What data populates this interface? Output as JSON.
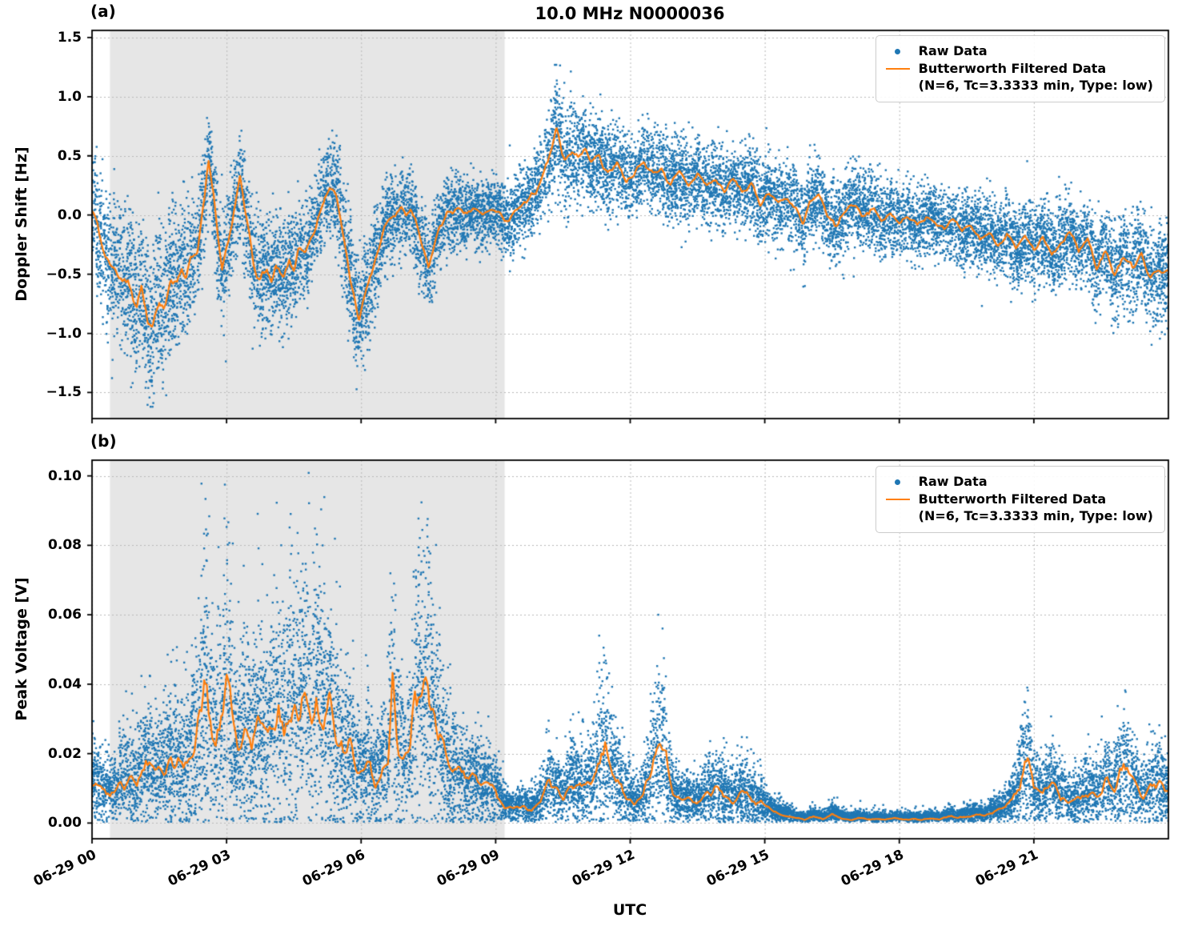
{
  "figure": {
    "title": "10.0 MHz N0000036",
    "xlabel": "UTC"
  },
  "style": {
    "raw_color": "#1f77b4",
    "filtered_color": "#ff7f0e",
    "shaded_color": "rgba(140,140,140,0.22)",
    "grid_color": "#b8b8b8",
    "spine_color": "#000000",
    "background": "#ffffff"
  },
  "legend": {
    "raw_label": "Raw Data",
    "filtered_label": "Butterworth Filtered Data",
    "filtered_sublabel": "(N=6, Tc=3.3333 min, Type: low)"
  },
  "x_axis": {
    "label": "UTC",
    "range_hours": [
      0,
      24
    ],
    "ticks_hours": [
      0,
      3,
      6,
      9,
      12,
      15,
      18,
      21
    ],
    "tick_labels": [
      "06-29 00",
      "06-29 03",
      "06-29 06",
      "06-29 09",
      "06-29 12",
      "06-29 15",
      "06-29 18",
      "06-29 21"
    ]
  },
  "shaded_region_hours": [
    0.4,
    9.2
  ],
  "chart_data": [
    {
      "panel": "(a)",
      "type": "scatter",
      "ylabel": "Doppler Shift [Hz]",
      "y_unit": "Hz",
      "x_unit": "hours since 06-29 00:00 UTC",
      "ylim": [
        -1.72,
        1.56
      ],
      "ytick_values": [
        1.5,
        1.0,
        0.5,
        0.0,
        -0.5,
        -1.0,
        -1.5
      ],
      "ytick_labels": [
        "1.5",
        "1.0",
        "0.5",
        "0.0",
        "−0.5",
        "−1.0",
        "−1.5"
      ],
      "grid": true,
      "legend_position": "upper right",
      "series": [
        {
          "name": "Raw Data",
          "type": "scatter",
          "color": "#1f77b4",
          "n_points_approx": 17000,
          "model": "raw = filtered + noise; time-varying half-width given in noise_halfwidth_hz; extremes about -1.55 Hz near 01:20 and +1.42 Hz near 10:20"
        },
        {
          "name": "Butterworth Filtered Data (N=6, Tc=3.3333 min, Type: low)",
          "type": "line",
          "color": "#ff7f0e",
          "x": [
            0,
            0.15,
            0.3,
            0.5,
            0.7,
            0.85,
            1.0,
            1.1,
            1.25,
            1.35,
            1.5,
            1.6,
            1.75,
            1.9,
            2.0,
            2.1,
            2.2,
            2.35,
            2.5,
            2.6,
            2.7,
            2.8,
            2.9,
            3.0,
            3.1,
            3.2,
            3.3,
            3.4,
            3.5,
            3.6,
            3.75,
            3.9,
            4.0,
            4.1,
            4.25,
            4.4,
            4.5,
            4.6,
            4.75,
            4.9,
            5.0,
            5.15,
            5.3,
            5.45,
            5.55,
            5.65,
            5.75,
            5.85,
            5.95,
            6.05,
            6.15,
            6.3,
            6.45,
            6.6,
            6.75,
            6.9,
            7.0,
            7.1,
            7.2,
            7.35,
            7.5,
            7.6,
            7.75,
            7.9,
            8.1,
            8.3,
            8.5,
            8.7,
            8.9,
            9.1,
            9.3,
            9.5,
            9.7,
            9.9,
            10.1,
            10.25,
            10.35,
            10.45,
            10.55,
            10.7,
            10.85,
            11.0,
            11.15,
            11.3,
            11.5,
            11.7,
            11.9,
            12.1,
            12.3,
            12.5,
            12.7,
            12.9,
            13.1,
            13.3,
            13.5,
            13.7,
            13.9,
            14.1,
            14.3,
            14.5,
            14.7,
            14.9,
            15.1,
            15.3,
            15.5,
            15.7,
            15.85,
            16.0,
            16.2,
            16.4,
            16.6,
            16.8,
            17.0,
            17.2,
            17.4,
            17.6,
            17.8,
            18.0,
            18.2,
            18.4,
            18.6,
            18.8,
            19.0,
            19.2,
            19.4,
            19.6,
            19.8,
            20.0,
            20.2,
            20.4,
            20.6,
            20.8,
            21.0,
            21.2,
            21.4,
            21.6,
            21.8,
            22.0,
            22.2,
            22.4,
            22.6,
            22.8,
            23.0,
            23.2,
            23.4,
            23.6,
            23.8,
            24.0
          ],
          "y": [
            0.1,
            -0.15,
            -0.35,
            -0.45,
            -0.55,
            -0.6,
            -0.75,
            -0.6,
            -0.95,
            -1.0,
            -0.7,
            -0.75,
            -0.55,
            -0.6,
            -0.45,
            -0.5,
            -0.35,
            -0.3,
            0.1,
            0.45,
            0.2,
            -0.2,
            -0.5,
            -0.3,
            -0.1,
            0.1,
            0.3,
            0.05,
            -0.15,
            -0.4,
            -0.55,
            -0.45,
            -0.6,
            -0.45,
            -0.55,
            -0.4,
            -0.45,
            -0.3,
            -0.35,
            -0.2,
            -0.1,
            0.1,
            0.25,
            0.2,
            0.0,
            -0.3,
            -0.5,
            -0.7,
            -0.9,
            -0.75,
            -0.6,
            -0.4,
            -0.2,
            -0.05,
            0.0,
            0.05,
            0.0,
            0.05,
            -0.05,
            -0.25,
            -0.45,
            -0.3,
            -0.1,
            0.0,
            0.05,
            0.0,
            0.05,
            0.0,
            0.05,
            0.0,
            -0.05,
            0.05,
            0.1,
            0.2,
            0.4,
            0.55,
            0.75,
            0.6,
            0.45,
            0.55,
            0.5,
            0.55,
            0.45,
            0.5,
            0.35,
            0.45,
            0.3,
            0.35,
            0.45,
            0.35,
            0.4,
            0.25,
            0.35,
            0.25,
            0.35,
            0.25,
            0.3,
            0.2,
            0.3,
            0.2,
            0.25,
            0.1,
            0.2,
            0.1,
            0.15,
            0.05,
            -0.1,
            0.1,
            0.15,
            0.0,
            -0.1,
            0.05,
            0.1,
            0.0,
            0.05,
            -0.05,
            0.0,
            -0.05,
            0.0,
            -0.1,
            0.0,
            -0.05,
            -0.1,
            -0.05,
            -0.15,
            -0.1,
            -0.2,
            -0.15,
            -0.25,
            -0.15,
            -0.3,
            -0.2,
            -0.3,
            -0.2,
            -0.35,
            -0.25,
            -0.15,
            -0.3,
            -0.2,
            -0.45,
            -0.3,
            -0.5,
            -0.35,
            -0.45,
            -0.3,
            -0.55,
            -0.45,
            -0.5
          ]
        }
      ],
      "noise_halfwidth_hz": {
        "x": [
          0,
          0.5,
          1,
          1.5,
          2,
          2.5,
          3,
          3.5,
          4,
          4.5,
          5,
          5.5,
          6,
          6.5,
          7,
          7.5,
          8,
          8.5,
          9,
          9.5,
          10,
          10.4,
          11,
          11.5,
          12,
          13,
          14,
          15,
          16,
          17,
          18,
          19,
          20,
          21,
          22,
          23,
          24
        ],
        "halfwidth": [
          0.45,
          0.5,
          0.55,
          0.6,
          0.5,
          0.4,
          0.38,
          0.4,
          0.42,
          0.4,
          0.35,
          0.4,
          0.45,
          0.35,
          0.3,
          0.3,
          0.28,
          0.25,
          0.25,
          0.28,
          0.3,
          0.42,
          0.35,
          0.32,
          0.3,
          0.3,
          0.3,
          0.3,
          0.3,
          0.3,
          0.26,
          0.26,
          0.26,
          0.3,
          0.3,
          0.34,
          0.36
        ]
      }
    },
    {
      "panel": "(b)",
      "type": "scatter",
      "ylabel": "Peak Voltage [V]",
      "y_unit": "V",
      "x_unit": "hours since 06-29 00:00 UTC",
      "ylim": [
        -0.0045,
        0.1045
      ],
      "ytick_values": [
        0.1,
        0.08,
        0.06,
        0.04,
        0.02,
        0.0
      ],
      "ytick_labels": [
        "0.10",
        "0.08",
        "0.06",
        "0.04",
        "0.02",
        "0.00"
      ],
      "grid": true,
      "legend_position": "upper right",
      "series": [
        {
          "name": "Raw Data",
          "type": "scatter",
          "color": "#1f77b4",
          "n_points_approx": 17000,
          "model": "raw ≈ filtered × (0.2–2.9) with occasional upward spikes; maximum ≈ 0.10 V near 07:12, ≈ 0.086 V near 02:33; very quiet 15:00–20:00"
        },
        {
          "name": "Butterworth Filtered Data (N=6, Tc=3.3333 min, Type: low)",
          "type": "line",
          "color": "#ff7f0e",
          "x": [
            0,
            0.2,
            0.4,
            0.6,
            0.8,
            1.0,
            1.2,
            1.4,
            1.6,
            1.8,
            2.0,
            2.2,
            2.4,
            2.5,
            2.6,
            2.75,
            2.9,
            3.0,
            3.1,
            3.25,
            3.4,
            3.55,
            3.7,
            3.85,
            4.0,
            4.15,
            4.3,
            4.45,
            4.6,
            4.75,
            4.9,
            5.0,
            5.15,
            5.3,
            5.45,
            5.6,
            5.75,
            5.9,
            6.0,
            6.15,
            6.3,
            6.45,
            6.6,
            6.7,
            6.8,
            6.95,
            7.1,
            7.2,
            7.35,
            7.5,
            7.6,
            7.75,
            7.9,
            8.0,
            8.2,
            8.4,
            8.6,
            8.8,
            9.0,
            9.2,
            9.4,
            9.6,
            9.8,
            10.0,
            10.2,
            10.35,
            10.5,
            10.7,
            10.9,
            11.1,
            11.3,
            11.45,
            11.6,
            11.75,
            11.9,
            12.1,
            12.3,
            12.5,
            12.65,
            12.8,
            12.95,
            13.1,
            13.3,
            13.5,
            13.7,
            13.9,
            14.1,
            14.3,
            14.5,
            14.7,
            14.9,
            15.1,
            15.3,
            15.5,
            15.7,
            15.9,
            16.1,
            16.3,
            16.5,
            16.7,
            16.9,
            17.1,
            17.3,
            17.5,
            17.7,
            17.9,
            18.1,
            18.3,
            18.5,
            18.7,
            18.9,
            19.1,
            19.3,
            19.5,
            19.7,
            19.9,
            20.1,
            20.3,
            20.5,
            20.7,
            20.85,
            21.0,
            21.2,
            21.4,
            21.6,
            21.8,
            22.0,
            22.2,
            22.4,
            22.6,
            22.8,
            23.0,
            23.2,
            23.4,
            23.6,
            23.8,
            24.0
          ],
          "y": [
            0.012,
            0.01,
            0.009,
            0.011,
            0.013,
            0.012,
            0.018,
            0.014,
            0.016,
            0.018,
            0.016,
            0.02,
            0.03,
            0.042,
            0.03,
            0.025,
            0.032,
            0.042,
            0.03,
            0.02,
            0.028,
            0.022,
            0.03,
            0.025,
            0.028,
            0.032,
            0.027,
            0.035,
            0.03,
            0.04,
            0.032,
            0.038,
            0.03,
            0.035,
            0.025,
            0.02,
            0.022,
            0.016,
            0.014,
            0.018,
            0.012,
            0.015,
            0.02,
            0.04,
            0.025,
            0.018,
            0.022,
            0.04,
            0.035,
            0.04,
            0.03,
            0.025,
            0.018,
            0.016,
            0.014,
            0.013,
            0.012,
            0.011,
            0.01,
            0.005,
            0.004,
            0.005,
            0.004,
            0.006,
            0.012,
            0.009,
            0.007,
            0.012,
            0.01,
            0.012,
            0.018,
            0.022,
            0.015,
            0.012,
            0.008,
            0.006,
            0.008,
            0.016,
            0.022,
            0.018,
            0.008,
            0.006,
            0.007,
            0.006,
            0.008,
            0.01,
            0.008,
            0.007,
            0.009,
            0.007,
            0.006,
            0.004,
            0.003,
            0.002,
            0.0015,
            0.001,
            0.002,
            0.001,
            0.0025,
            0.0015,
            0.001,
            0.0015,
            0.001,
            0.0012,
            0.001,
            0.0015,
            0.001,
            0.0012,
            0.001,
            0.0015,
            0.001,
            0.002,
            0.0015,
            0.002,
            0.0025,
            0.002,
            0.003,
            0.004,
            0.006,
            0.012,
            0.02,
            0.01,
            0.008,
            0.012,
            0.008,
            0.006,
            0.007,
            0.009,
            0.008,
            0.012,
            0.01,
            0.016,
            0.012,
            0.008,
            0.01,
            0.012,
            0.008
          ]
        }
      ]
    }
  ]
}
